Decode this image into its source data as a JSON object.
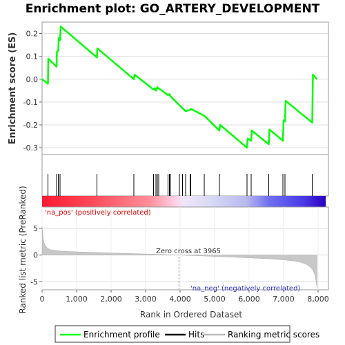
{
  "chart_data": [
    {
      "type": "line",
      "title": "Enrichment plot: GO_ARTERY_DEVELOPMENT",
      "ylabel": "Enrichment score (ES)",
      "ylim": [
        -0.33,
        0.25
      ],
      "yticks": [
        0.2,
        0.1,
        0.0,
        -0.1,
        -0.2,
        -0.3
      ],
      "ytick_labels": [
        "0.2",
        "0.1",
        "0.0",
        "-0.1",
        "-0.2",
        "-0.3"
      ],
      "xlim": [
        0,
        8300
      ],
      "series": [
        {
          "name": "Enrichment profile",
          "color": "#00ff00",
          "x": [
            0,
            170,
            180,
            420,
            430,
            470,
            480,
            520,
            540,
            1590,
            1600,
            2660,
            2680,
            3230,
            3260,
            3300,
            3340,
            3360,
            3380,
            3650,
            3690,
            3720,
            4160,
            4290,
            4310,
            4700,
            5140,
            5160,
            5940,
            5960,
            6060,
            6080,
            6570,
            6590,
            6980,
            7000,
            7040,
            7060,
            7830,
            7850,
            7970
          ],
          "y": [
            0.0,
            -0.02,
            0.09,
            0.055,
            0.12,
            0.125,
            0.18,
            0.17,
            0.23,
            0.095,
            0.135,
            0.0,
            0.02,
            -0.045,
            -0.04,
            -0.05,
            -0.035,
            -0.04,
            -0.04,
            -0.07,
            -0.065,
            -0.075,
            -0.14,
            -0.135,
            -0.13,
            -0.16,
            -0.225,
            -0.2,
            -0.3,
            -0.26,
            -0.27,
            -0.225,
            -0.285,
            -0.22,
            -0.27,
            -0.18,
            -0.185,
            -0.095,
            -0.19,
            0.02,
            0.0
          ]
        }
      ],
      "hits": [
        170,
        420,
        470,
        520,
        1590,
        2660,
        3230,
        3300,
        3340,
        3380,
        3650,
        3690,
        3720,
        3980,
        4070,
        4160,
        4290,
        4310,
        4700,
        5140,
        5940,
        6060,
        6570,
        6980,
        7040,
        7830
      ]
    },
    {
      "type": "area",
      "ylabel": "Ranked list metric (PreRanked)",
      "xlabel": "Rank in Ordered Dataset",
      "xlim": [
        0,
        8300
      ],
      "ylim": [
        -6.5,
        9
      ],
      "yticks": [
        5,
        0,
        -5
      ],
      "ytick_labels": [
        "5",
        "0",
        "-5"
      ],
      "xticks": [
        0,
        1000,
        2000,
        3000,
        4000,
        5000,
        6000,
        7000,
        8000
      ],
      "xtick_labels": [
        "0",
        "1,000",
        "2,000",
        "3,000",
        "4,000",
        "5,000",
        "6,000",
        "7,000",
        "8,000"
      ],
      "x": [
        0,
        30,
        60,
        100,
        150,
        250,
        400,
        600,
        1000,
        1500,
        2000,
        2500,
        3000,
        3500,
        3965,
        4500,
        5000,
        5500,
        6000,
        6500,
        7000,
        7300,
        7500,
        7650,
        7750,
        7850,
        7900,
        7940,
        7970
      ],
      "values": [
        5.3,
        3.2,
        2.3,
        1.7,
        1.3,
        1.0,
        0.85,
        0.72,
        0.6,
        0.5,
        0.4,
        0.3,
        0.2,
        0.1,
        0.0,
        -0.12,
        -0.25,
        -0.38,
        -0.52,
        -0.68,
        -0.9,
        -1.1,
        -1.35,
        -1.7,
        -2.1,
        -2.8,
        -3.6,
        -4.8,
        -6.2
      ],
      "zero_cross_label": "Zero cross at 3965",
      "pos_label": "'na_pos' (positively correlated)",
      "neg_label": "'na_neg' (negatively correlated)"
    }
  ],
  "legend": {
    "items": [
      {
        "label": "Enrichment profile",
        "color": "#00ff00"
      },
      {
        "label": "Hits",
        "color": "#000000"
      },
      {
        "label": "Ranking metric scores",
        "color": "#bbbbbb"
      }
    ]
  }
}
